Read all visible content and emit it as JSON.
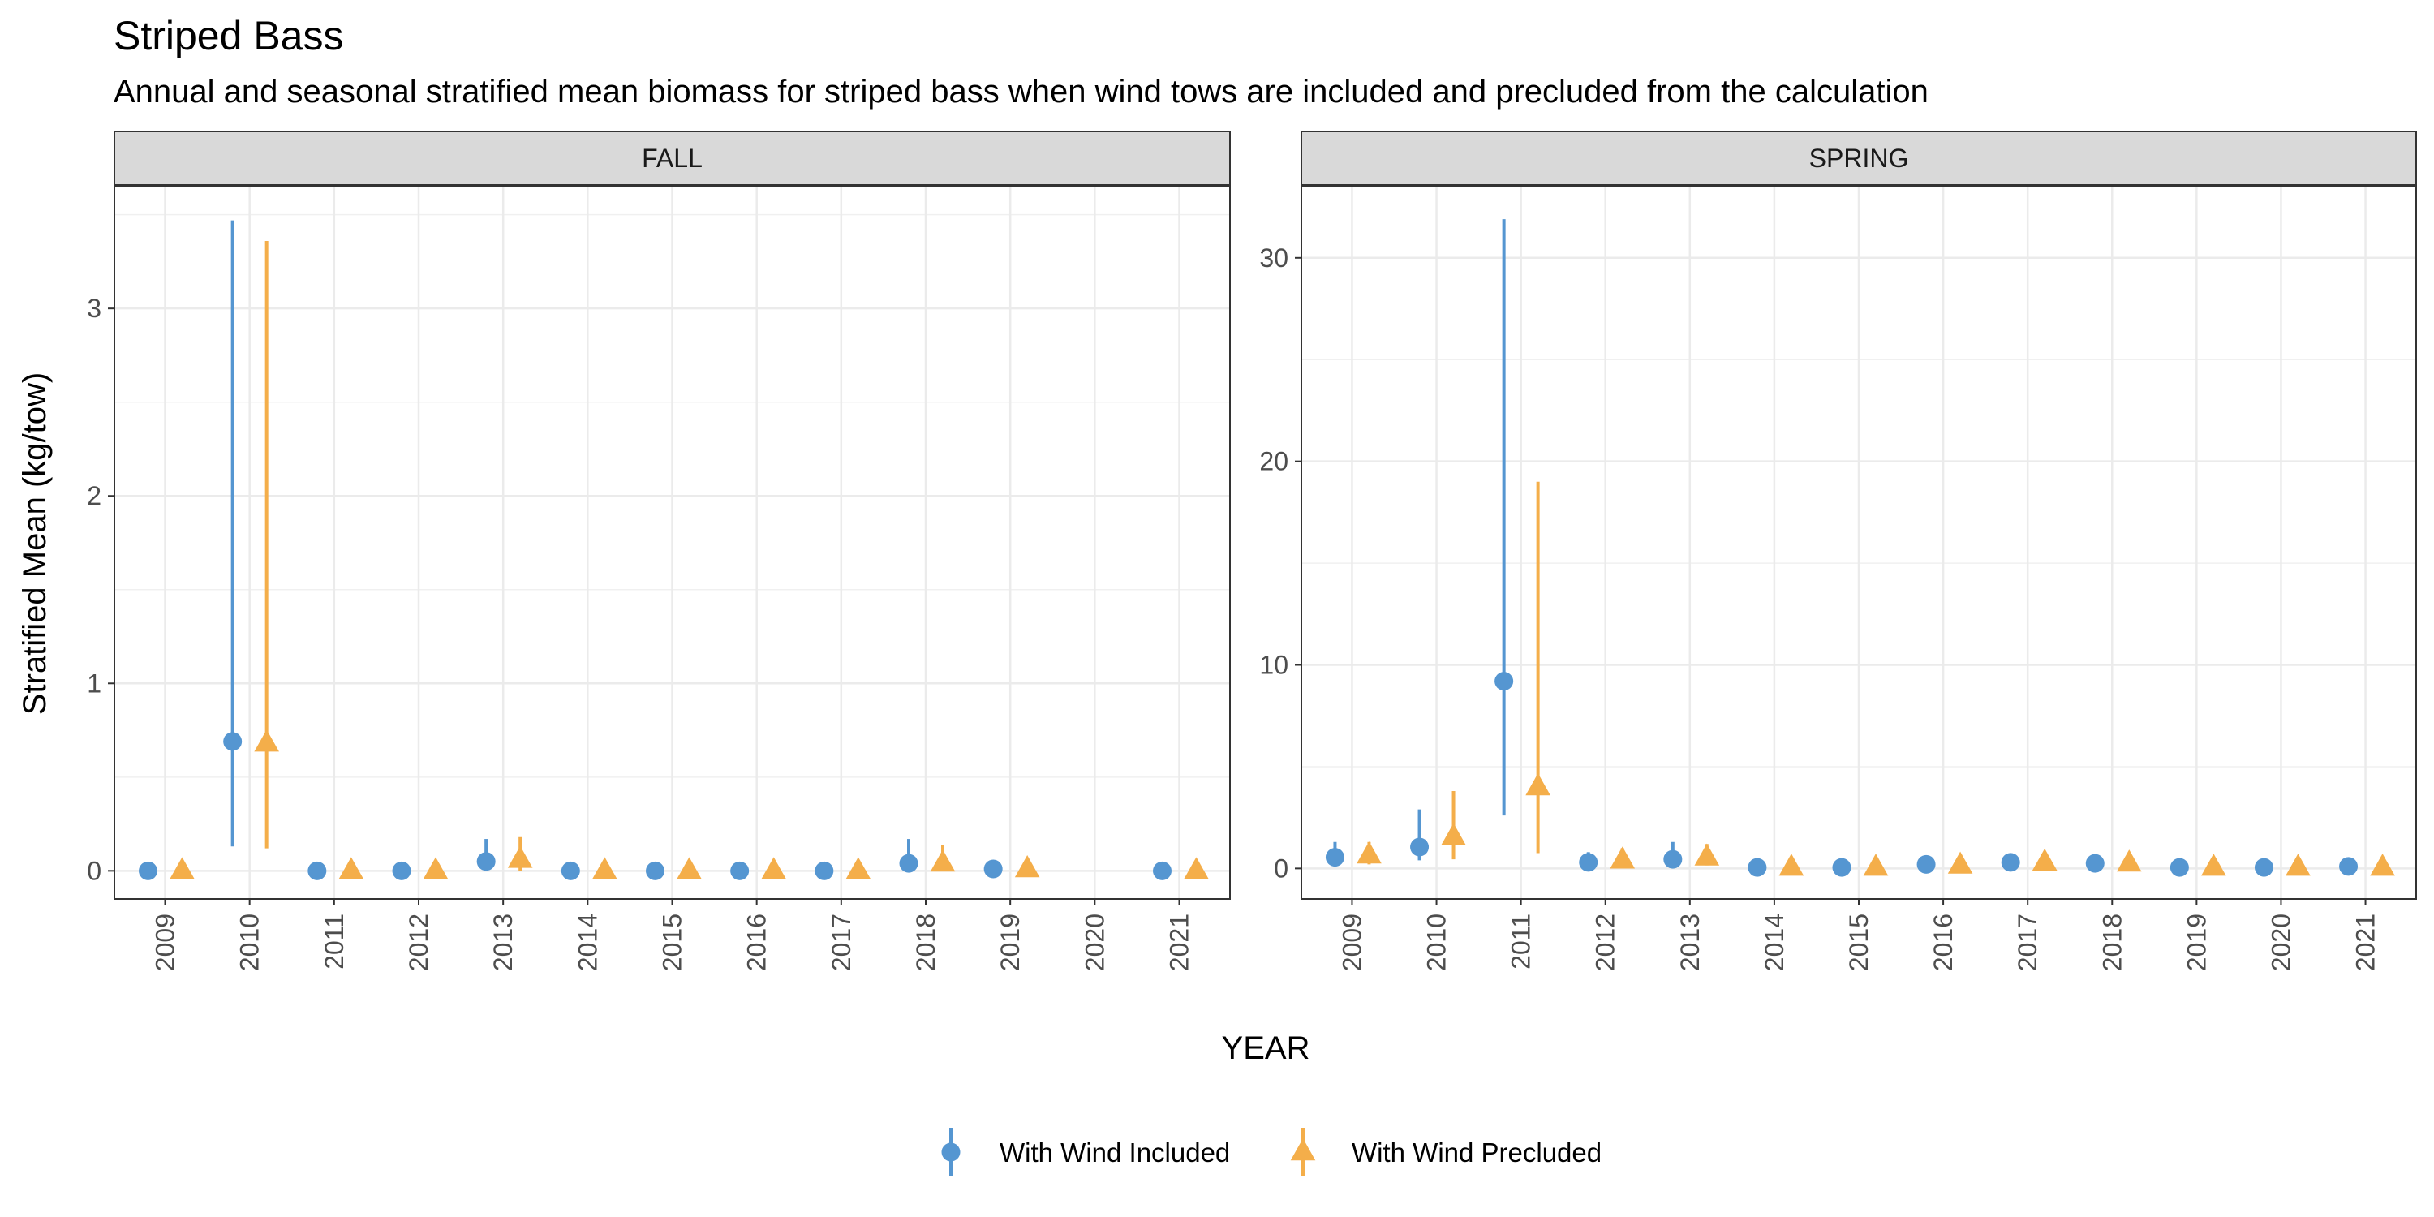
{
  "chart_data": {
    "type": "scatter",
    "title": "Striped Bass",
    "subtitle": "Annual and seasonal stratified mean biomass for striped bass when wind tows are included and precluded from the calculation",
    "xlabel": "YEAR",
    "ylabel": "Stratified Mean (kg/tow)",
    "grid": true,
    "legend_position": "bottom",
    "categories": [
      "2009",
      "2010",
      "2011",
      "2012",
      "2013",
      "2014",
      "2015",
      "2016",
      "2017",
      "2018",
      "2019",
      "2020",
      "2021"
    ],
    "series_styles": [
      {
        "key": "included",
        "name": "With Wind Included",
        "color": "#5596d1",
        "marker": "circle"
      },
      {
        "key": "precluded",
        "name": "With Wind Precluded",
        "color": "#f4ae4a",
        "marker": "triangle"
      }
    ],
    "panels": [
      {
        "name": "FALL",
        "ylim": [
          -0.15,
          3.65
        ],
        "yticks": [
          0,
          1,
          2,
          3
        ],
        "included": [
          {
            "x": "2009",
            "y": 0.0,
            "lo": 0.0,
            "hi": 0.0
          },
          {
            "x": "2010",
            "y": 0.69,
            "lo": 0.13,
            "hi": 3.47
          },
          {
            "x": "2011",
            "y": 0.0,
            "lo": 0.0,
            "hi": 0.0
          },
          {
            "x": "2012",
            "y": 0.0,
            "lo": 0.0,
            "hi": 0.0
          },
          {
            "x": "2013",
            "y": 0.05,
            "lo": 0.0,
            "hi": 0.17
          },
          {
            "x": "2014",
            "y": 0.0,
            "lo": 0.0,
            "hi": 0.0
          },
          {
            "x": "2015",
            "y": 0.0,
            "lo": 0.0,
            "hi": 0.0
          },
          {
            "x": "2016",
            "y": 0.0,
            "lo": 0.0,
            "hi": 0.0
          },
          {
            "x": "2017",
            "y": 0.0,
            "lo": 0.0,
            "hi": 0.0
          },
          {
            "x": "2018",
            "y": 0.04,
            "lo": 0.0,
            "hi": 0.17
          },
          {
            "x": "2019",
            "y": 0.01,
            "lo": 0.0,
            "hi": 0.03
          },
          {
            "x": "2021",
            "y": 0.0,
            "lo": 0.0,
            "hi": 0.0
          }
        ],
        "precluded": [
          {
            "x": "2009",
            "y": 0.0,
            "lo": 0.0,
            "hi": 0.0
          },
          {
            "x": "2010",
            "y": 0.68,
            "lo": 0.12,
            "hi": 3.36
          },
          {
            "x": "2011",
            "y": 0.0,
            "lo": 0.0,
            "hi": 0.0
          },
          {
            "x": "2012",
            "y": 0.0,
            "lo": 0.0,
            "hi": 0.0
          },
          {
            "x": "2013",
            "y": 0.06,
            "lo": 0.0,
            "hi": 0.18
          },
          {
            "x": "2014",
            "y": 0.0,
            "lo": 0.0,
            "hi": 0.0
          },
          {
            "x": "2015",
            "y": 0.0,
            "lo": 0.0,
            "hi": 0.0
          },
          {
            "x": "2016",
            "y": 0.0,
            "lo": 0.0,
            "hi": 0.0
          },
          {
            "x": "2017",
            "y": 0.0,
            "lo": 0.0,
            "hi": 0.0
          },
          {
            "x": "2018",
            "y": 0.04,
            "lo": 0.0,
            "hi": 0.14
          },
          {
            "x": "2019",
            "y": 0.01,
            "lo": 0.0,
            "hi": 0.03
          },
          {
            "x": "2021",
            "y": 0.0,
            "lo": 0.0,
            "hi": 0.0
          }
        ]
      },
      {
        "name": "SPRING",
        "ylim": [
          -1.5,
          33.5
        ],
        "yticks": [
          0,
          10,
          20,
          30
        ],
        "included": [
          {
            "x": "2009",
            "y": 0.55,
            "lo": 0.2,
            "hi": 1.3
          },
          {
            "x": "2010",
            "y": 1.05,
            "lo": 0.4,
            "hi": 2.9
          },
          {
            "x": "2011",
            "y": 9.2,
            "lo": 2.6,
            "hi": 31.9
          },
          {
            "x": "2012",
            "y": 0.3,
            "lo": 0.1,
            "hi": 0.8
          },
          {
            "x": "2013",
            "y": 0.45,
            "lo": 0.1,
            "hi": 1.3
          },
          {
            "x": "2014",
            "y": 0.05,
            "lo": 0.0,
            "hi": 0.1
          },
          {
            "x": "2015",
            "y": 0.05,
            "lo": 0.0,
            "hi": 0.1
          },
          {
            "x": "2016",
            "y": 0.2,
            "lo": 0.05,
            "hi": 0.4
          },
          {
            "x": "2017",
            "y": 0.3,
            "lo": 0.1,
            "hi": 0.5
          },
          {
            "x": "2018",
            "y": 0.25,
            "lo": 0.1,
            "hi": 0.5
          },
          {
            "x": "2019",
            "y": 0.05,
            "lo": 0.0,
            "hi": 0.1
          },
          {
            "x": "2020",
            "y": 0.05,
            "lo": 0.0,
            "hi": 0.1
          },
          {
            "x": "2021",
            "y": 0.1,
            "lo": 0.0,
            "hi": 0.2
          }
        ],
        "precluded": [
          {
            "x": "2009",
            "y": 0.65,
            "lo": 0.2,
            "hi": 1.3
          },
          {
            "x": "2010",
            "y": 1.55,
            "lo": 0.45,
            "hi": 3.8
          },
          {
            "x": "2011",
            "y": 4.0,
            "lo": 0.75,
            "hi": 19.0
          },
          {
            "x": "2012",
            "y": 0.4,
            "lo": 0.1,
            "hi": 1.0
          },
          {
            "x": "2013",
            "y": 0.55,
            "lo": 0.15,
            "hi": 1.2
          },
          {
            "x": "2014",
            "y": 0.05,
            "lo": 0.0,
            "hi": 0.1
          },
          {
            "x": "2015",
            "y": 0.05,
            "lo": 0.0,
            "hi": 0.1
          },
          {
            "x": "2016",
            "y": 0.15,
            "lo": 0.05,
            "hi": 0.3
          },
          {
            "x": "2017",
            "y": 0.3,
            "lo": 0.1,
            "hi": 0.5
          },
          {
            "x": "2018",
            "y": 0.25,
            "lo": 0.1,
            "hi": 0.45
          },
          {
            "x": "2019",
            "y": 0.05,
            "lo": 0.0,
            "hi": 0.1
          },
          {
            "x": "2020",
            "y": 0.05,
            "lo": 0.0,
            "hi": 0.1
          },
          {
            "x": "2021",
            "y": 0.05,
            "lo": 0.0,
            "hi": 0.1
          }
        ]
      }
    ]
  }
}
